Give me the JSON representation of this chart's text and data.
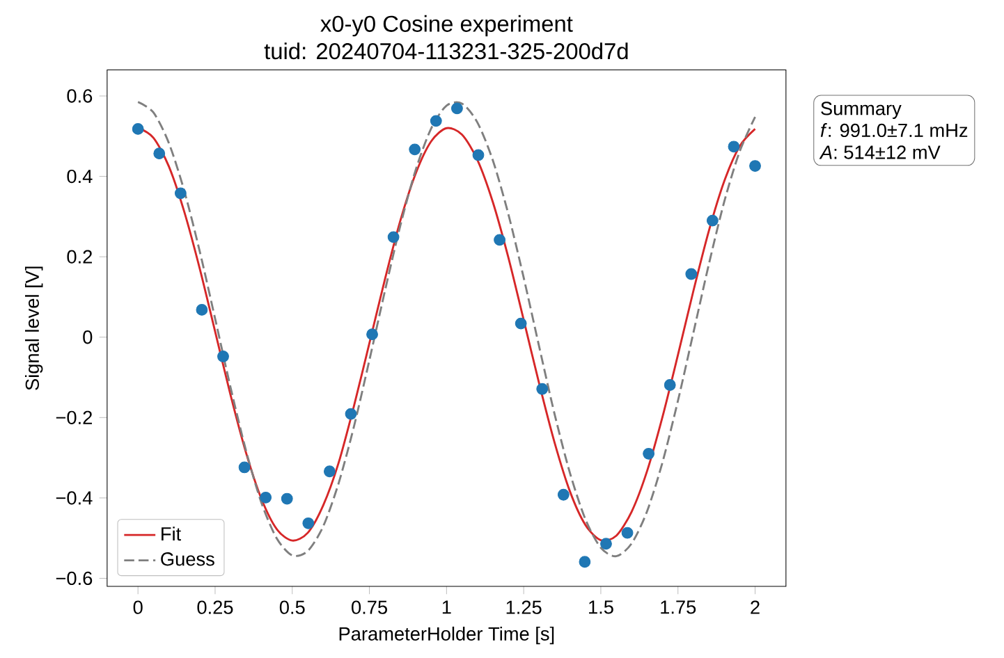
{
  "chart_data": {
    "type": "line",
    "title": "x0-y0 Cosine experiment",
    "subtitle": "tuid: 20240704-113231-325-200d7d",
    "xlabel": "ParameterHolder Time [s]",
    "ylabel": "Signal level [V]",
    "xlim": [
      -0.1,
      2.1
    ],
    "ylim": [
      -0.62,
      0.665
    ],
    "xticks": [
      0,
      0.25,
      0.5,
      0.75,
      1,
      1.25,
      1.5,
      1.75,
      2
    ],
    "yticks": [
      {
        "value": -0.6,
        "label": "−0.6"
      },
      {
        "value": -0.4,
        "label": "−0.4"
      },
      {
        "value": -0.2,
        "label": "−0.2"
      },
      0,
      0.2,
      0.4,
      0.6
    ],
    "legend": "bottom left",
    "annotations": [
      "Summary",
      "*f*: 991.0±7.1 mHz",
      "*A*: 514±12 mV"
    ],
    "series": [
      {
        "type": "scatter",
        "marker": "circle",
        "color": "#1f77b4",
        "x": [
          0,
          0.069,
          0.138,
          0.207,
          0.276,
          0.345,
          0.414,
          0.483,
          0.552,
          0.621,
          0.69,
          0.759,
          0.828,
          0.897,
          0.966,
          1.034,
          1.103,
          1.172,
          1.241,
          1.31,
          1.379,
          1.448,
          1.517,
          1.586,
          1.655,
          1.724,
          1.793,
          1.862,
          1.931,
          2
        ],
        "values": [
          0.518,
          0.457,
          0.358,
          0.068,
          -0.048,
          -0.324,
          -0.399,
          -0.402,
          -0.463,
          -0.334,
          -0.191,
          0.007,
          0.249,
          0.467,
          0.538,
          0.569,
          0.453,
          0.242,
          0.034,
          -0.129,
          -0.392,
          -0.559,
          -0.514,
          -0.487,
          -0.29,
          -0.119,
          0.157,
          0.29,
          0.474,
          0.426
        ]
      },
      {
        "name": "Fit",
        "color": "#d62728",
        "line_style": "solid",
        "x": [
          0,
          0.05,
          0.1,
          0.15,
          0.2,
          0.25,
          0.3,
          0.35,
          0.4,
          0.45,
          0.5,
          0.55,
          0.6,
          0.65,
          0.7,
          0.75,
          0.8,
          0.85,
          0.9,
          0.95,
          1,
          1.05,
          1.1,
          1.15,
          1.2,
          1.25,
          1.3,
          1.35,
          1.4,
          1.45,
          1.5,
          1.55,
          1.6,
          1.65,
          1.7,
          1.75,
          1.8,
          1.85,
          1.9,
          1.95,
          2
        ],
        "values": [
          0.521,
          0.496,
          0.425,
          0.312,
          0.171,
          0.014,
          -0.144,
          -0.287,
          -0.402,
          -0.478,
          -0.506,
          -0.487,
          -0.419,
          -0.313,
          -0.171,
          -0.015,
          0.143,
          0.289,
          0.407,
          0.487,
          0.52,
          0.504,
          0.441,
          0.336,
          0.199,
          0.043,
          -0.115,
          -0.262,
          -0.384,
          -0.467,
          -0.505,
          -0.494,
          -0.434,
          -0.333,
          -0.198,
          -0.044,
          0.115,
          0.264,
          0.388,
          0.475,
          0.518
        ]
      },
      {
        "name": "Guess",
        "color": "#7f7f7f",
        "line_style": "dashed",
        "x": [
          0,
          0.05,
          0.1,
          0.15,
          0.2,
          0.25,
          0.3,
          0.35,
          0.4,
          0.45,
          0.5,
          0.55,
          0.6,
          0.65,
          0.7,
          0.75,
          0.8,
          0.85,
          0.9,
          0.95,
          1,
          1.05,
          1.1,
          1.15,
          1.2,
          1.25,
          1.3,
          1.35,
          1.4,
          1.45,
          1.5,
          1.55,
          1.6,
          1.65,
          1.7,
          1.75,
          1.8,
          1.85,
          1.9,
          1.95,
          2
        ],
        "values": [
          0.585,
          0.559,
          0.483,
          0.364,
          0.214,
          0.046,
          -0.125,
          -0.282,
          -0.412,
          -0.501,
          -0.543,
          -0.532,
          -0.471,
          -0.364,
          -0.222,
          -0.057,
          0.114,
          0.277,
          0.416,
          0.519,
          0.576,
          0.581,
          0.534,
          0.44,
          0.307,
          0.148,
          -0.023,
          -0.191,
          -0.338,
          -0.453,
          -0.524,
          -0.545,
          -0.513,
          -0.433,
          -0.311,
          -0.158,
          0.011,
          0.181,
          0.337,
          0.462,
          0.548
        ]
      }
    ]
  }
}
